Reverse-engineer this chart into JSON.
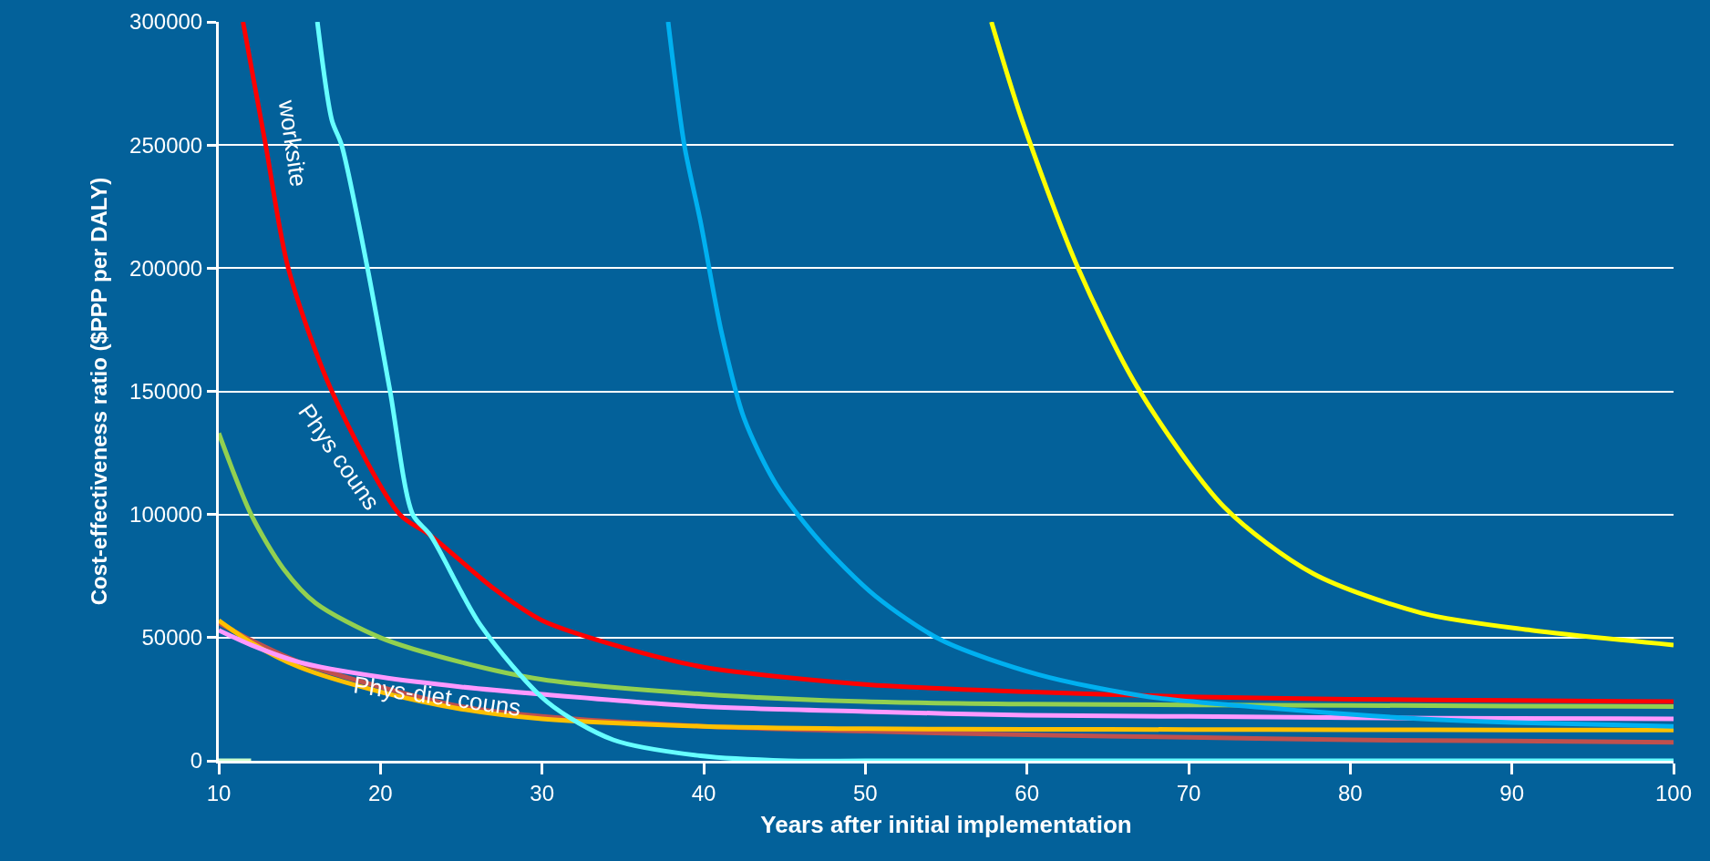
{
  "chart_data": {
    "type": "line",
    "xlabel": "Years after initial implementation",
    "ylabel": "Cost-effectiveness ratio ($PPP per DALY)",
    "xlim": [
      10,
      100
    ],
    "xticks": [
      10,
      20,
      30,
      40,
      50,
      60,
      70,
      80,
      90,
      100
    ],
    "ylim": [
      0,
      300000
    ],
    "yticks": [
      0,
      50000,
      100000,
      150000,
      200000,
      250000,
      300000
    ],
    "grid": "y",
    "marker": "none",
    "line_style": "solid",
    "annotations": [
      "worksite",
      "Phys couns",
      "Phys-diet couns"
    ],
    "series": [
      {
        "color": "#ccffcc",
        "x": [
          10,
          12
        ],
        "values": [
          0,
          0
        ]
      },
      {
        "color": "#c0504d",
        "x": [
          10,
          12,
          15,
          20,
          25,
          30,
          40,
          50,
          60,
          70,
          80,
          90,
          100
        ],
        "values": [
          56000,
          49000,
          40000,
          30000,
          22000,
          18000,
          14000,
          12000,
          10500,
          9500,
          8500,
          8000,
          7500
        ]
      },
      {
        "color": "#ffc000",
        "x": [
          10,
          12,
          15,
          20,
          25,
          30,
          40,
          50,
          60,
          70,
          80,
          90,
          100
        ],
        "values": [
          57000,
          48000,
          38000,
          28000,
          21000,
          17000,
          14000,
          13000,
          12800,
          12700,
          12600,
          12500,
          12500
        ]
      },
      {
        "color": "#ff99ff",
        "x": [
          10,
          12,
          15,
          20,
          25,
          30,
          40,
          50,
          60,
          70,
          80,
          90,
          100
        ],
        "values": [
          53000,
          47000,
          40000,
          34000,
          30000,
          27000,
          22000,
          20000,
          18500,
          18000,
          17500,
          17200,
          17000
        ]
      },
      {
        "color": "#92d050",
        "x": [
          10,
          12,
          14,
          16,
          20,
          25,
          30,
          40,
          50,
          60,
          70,
          80,
          90,
          100
        ],
        "values": [
          133000,
          100000,
          78000,
          64000,
          50000,
          40000,
          33000,
          27000,
          24000,
          23000,
          22700,
          22500,
          22200,
          22000
        ]
      },
      {
        "color": "#ff0000",
        "x": [
          11.5,
          12.9,
          14.3,
          17,
          21.2,
          23.1,
          27,
          30,
          35,
          40,
          50,
          60,
          70,
          80,
          90,
          100
        ],
        "values": [
          300000,
          250000,
          200000,
          150000,
          100000,
          91500,
          70000,
          57000,
          46000,
          38000,
          31000,
          28000,
          26000,
          25000,
          24500,
          24000
        ]
      },
      {
        "color": "#66ffff",
        "x": [
          16.1,
          17,
          17.6,
          19.2,
          20.6,
          22,
          23.1,
          26.2,
          30.3,
          34.4,
          39.8,
          45.2,
          50,
          60,
          70,
          80,
          90,
          100
        ],
        "values": [
          300000,
          260000,
          250000,
          200000,
          150000,
          100000,
          91500,
          55000,
          24000,
          8500,
          2000,
          0,
          0,
          0,
          0,
          0,
          0,
          0
        ]
      },
      {
        "color": "#00b0f0",
        "x": [
          37.8,
          38.8,
          39.8,
          41.1,
          42.5,
          44.5,
          47.2,
          50.6,
          54.7,
          60.7,
          67.5,
          77.7,
          84.4,
          90,
          100
        ],
        "values": [
          300000,
          250000,
          219000,
          174000,
          139000,
          112000,
          89000,
          67000,
          49000,
          35000,
          26000,
          20000,
          17000,
          15500,
          14000
        ]
      },
      {
        "color": "#ffff00",
        "x": [
          57.8,
          59.7,
          63.1,
          66.8,
          72.2,
          77.7,
          84.4,
          91.2,
          100
        ],
        "values": [
          300000,
          260000,
          201000,
          152000,
          103000,
          76000,
          60000,
          53000,
          47000
        ]
      }
    ]
  }
}
